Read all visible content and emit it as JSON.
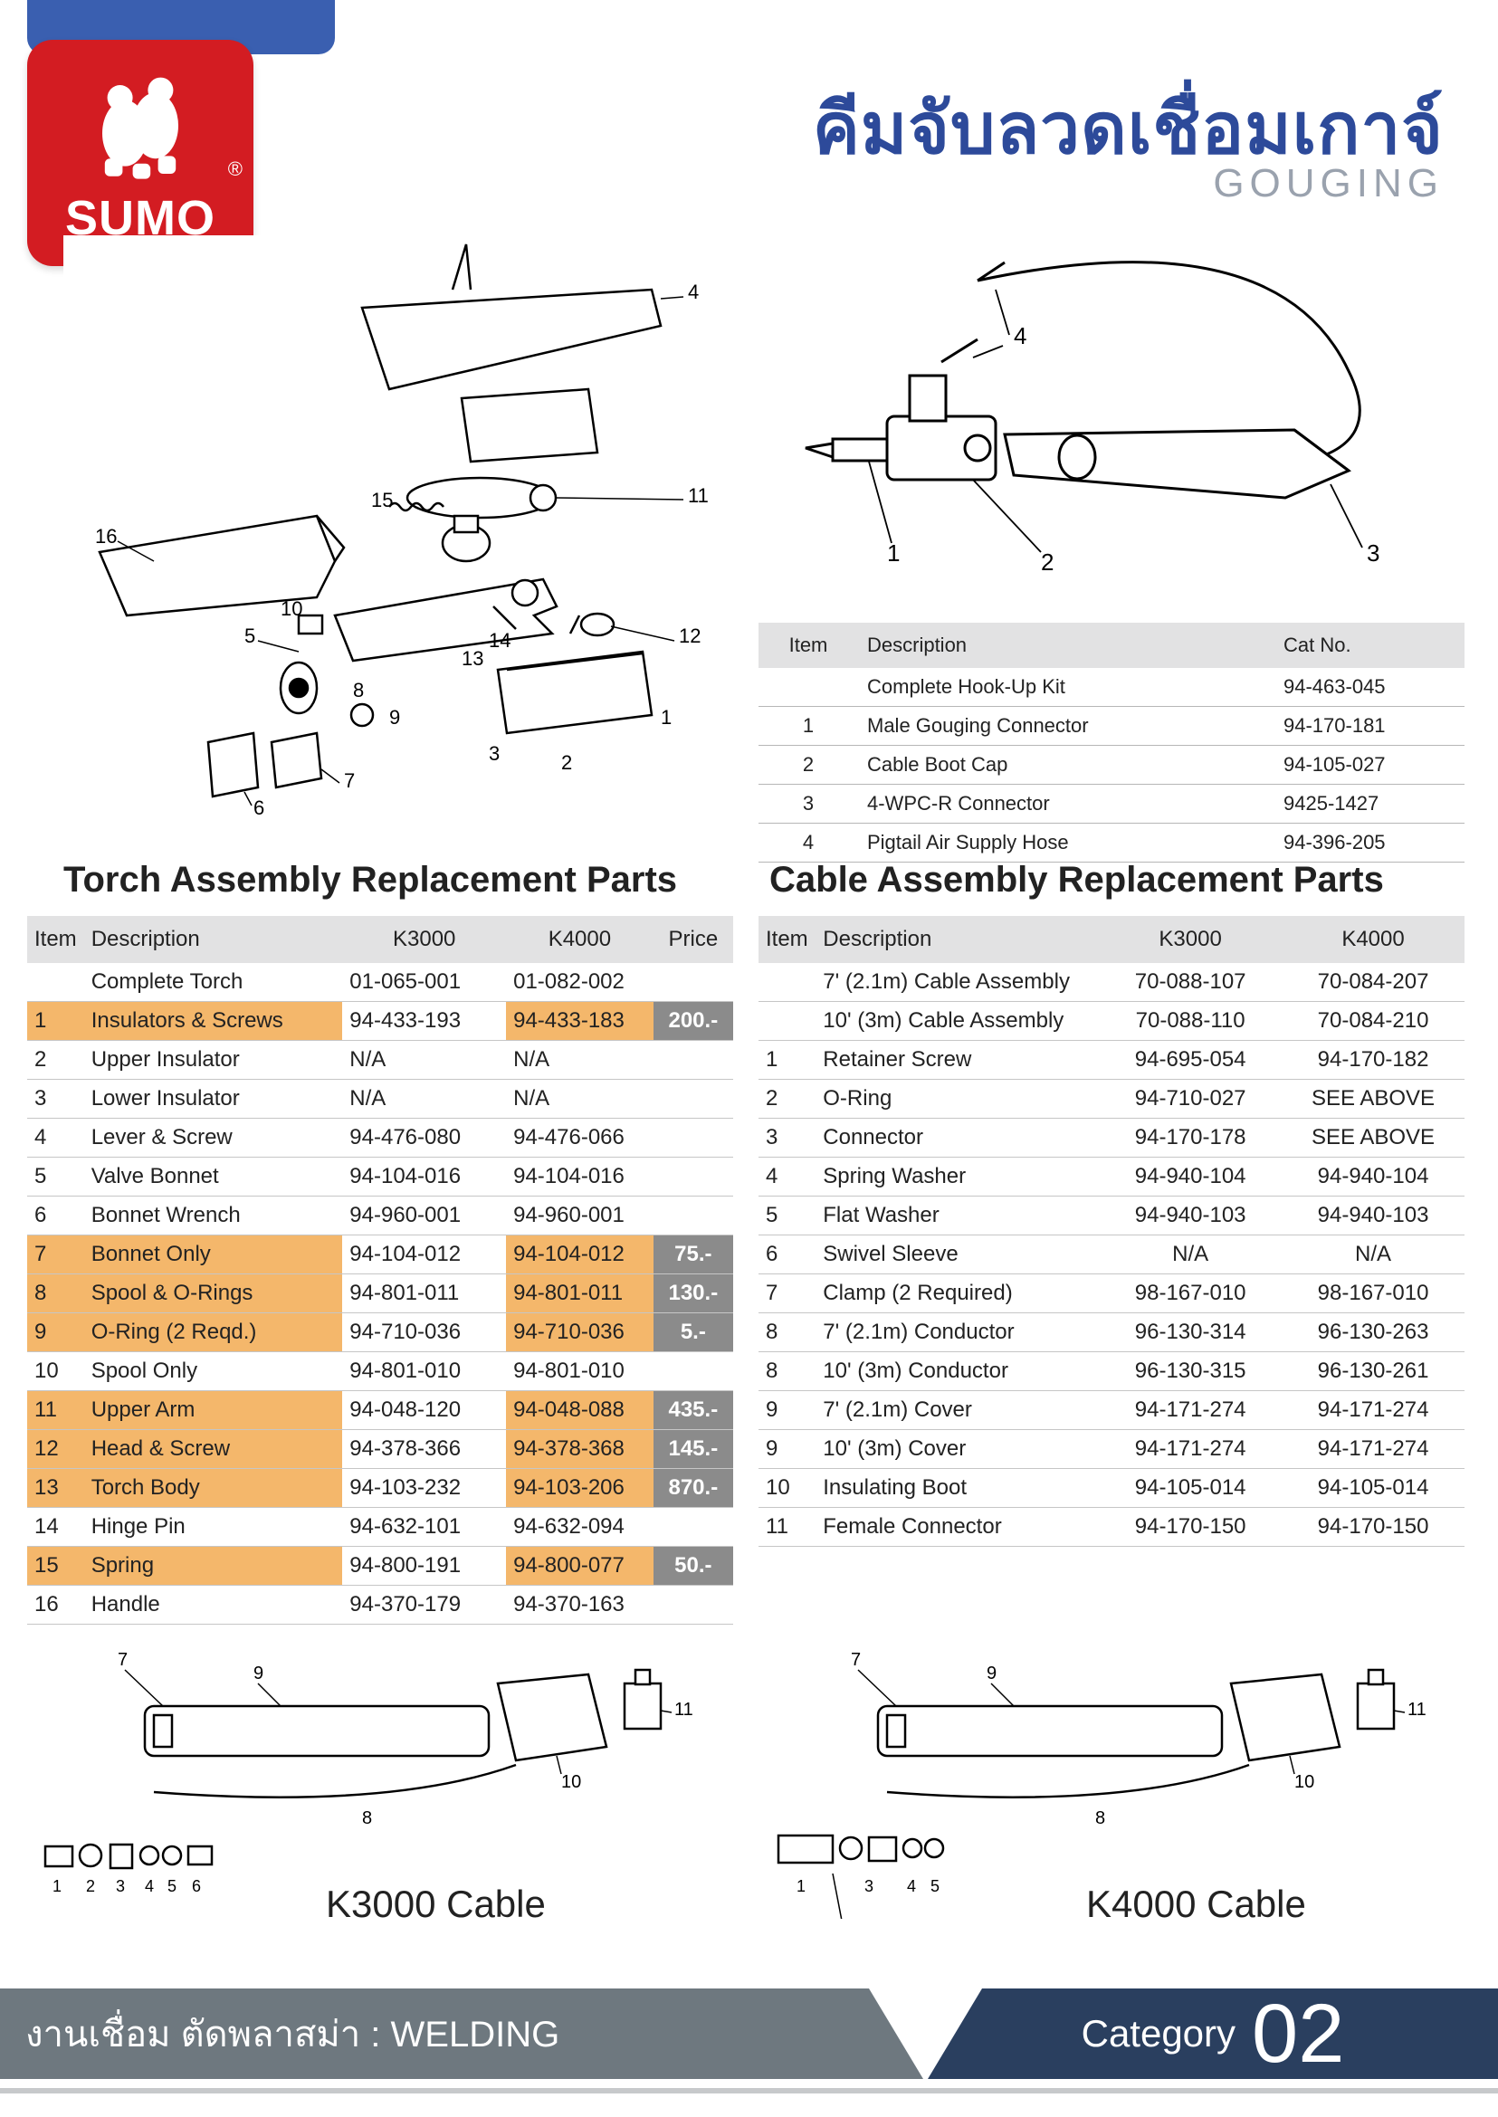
{
  "brand": {
    "name": "SUMO",
    "registered": "®"
  },
  "header": {
    "title_th": "คีมจับลวดเชื่อมเกาจ์",
    "title_en": "GOUGING"
  },
  "colors": {
    "accent_blue": "#3a5fb0",
    "navy": "#2a3f5f",
    "logo_red": "#d31c22",
    "highlight_orange": "#f4b76b",
    "price_bg": "#8b8b8b",
    "header_grey": "#e2e2e3",
    "row_border": "#c6c6c6",
    "footer_grey": "#6e787f"
  },
  "hookup": {
    "headers": {
      "item": "Item",
      "desc": "Description",
      "cat": "Cat No."
    },
    "rows": [
      {
        "item": "",
        "desc": "Complete Hook-Up Kit",
        "cat": "94-463-045"
      },
      {
        "item": "1",
        "desc": "Male Gouging Connector",
        "cat": "94-170-181"
      },
      {
        "item": "2",
        "desc": "Cable Boot Cap",
        "cat": "94-105-027"
      },
      {
        "item": "3",
        "desc": "4-WPC-R Connector",
        "cat": "9425-1427"
      },
      {
        "item": "4",
        "desc": "Pigtail Air Supply Hose",
        "cat": "94-396-205"
      }
    ]
  },
  "torch": {
    "title": "Torch Assembly Replacement Parts",
    "headers": {
      "item": "Item",
      "desc": "Description",
      "k3": "K3000",
      "k4": "K4000",
      "price": "Price"
    },
    "rows": [
      {
        "item": "",
        "desc": "Complete Torch",
        "k3": "01-065-001",
        "k4": "01-082-002",
        "price": "",
        "hl": false
      },
      {
        "item": "1",
        "desc": "Insulators & Screws",
        "k3": "94-433-193",
        "k4": "94-433-183",
        "price": "200.-",
        "hl": true
      },
      {
        "item": "2",
        "desc": "Upper Insulator",
        "k3": "N/A",
        "k4": "N/A",
        "price": "",
        "hl": false
      },
      {
        "item": "3",
        "desc": "Lower Insulator",
        "k3": "N/A",
        "k4": "N/A",
        "price": "",
        "hl": false
      },
      {
        "item": "4",
        "desc": "Lever & Screw",
        "k3": "94-476-080",
        "k4": "94-476-066",
        "price": "",
        "hl": false
      },
      {
        "item": "5",
        "desc": "Valve Bonnet",
        "k3": "94-104-016",
        "k4": "94-104-016",
        "price": "",
        "hl": false
      },
      {
        "item": "6",
        "desc": "Bonnet Wrench",
        "k3": "94-960-001",
        "k4": "94-960-001",
        "price": "",
        "hl": false
      },
      {
        "item": "7",
        "desc": "Bonnet Only",
        "k3": "94-104-012",
        "k4": "94-104-012",
        "price": "75.-",
        "hl": true
      },
      {
        "item": "8",
        "desc": "Spool & O-Rings",
        "k3": "94-801-011",
        "k4": "94-801-011",
        "price": "130.-",
        "hl": true
      },
      {
        "item": "9",
        "desc": "O-Ring (2 Reqd.)",
        "k3": "94-710-036",
        "k4": "94-710-036",
        "price": "5.-",
        "hl": true
      },
      {
        "item": "10",
        "desc": "Spool Only",
        "k3": "94-801-010",
        "k4": "94-801-010",
        "price": "",
        "hl": false
      },
      {
        "item": "11",
        "desc": "Upper Arm",
        "k3": "94-048-120",
        "k4": "94-048-088",
        "price": "435.-",
        "hl": true
      },
      {
        "item": "12",
        "desc": "Head & Screw",
        "k3": "94-378-366",
        "k4": "94-378-368",
        "price": "145.-",
        "hl": true
      },
      {
        "item": "13",
        "desc": "Torch Body",
        "k3": "94-103-232",
        "k4": "94-103-206",
        "price": "870.-",
        "hl": true
      },
      {
        "item": "14",
        "desc": "Hinge Pin",
        "k3": "94-632-101",
        "k4": "94-632-094",
        "price": "",
        "hl": false
      },
      {
        "item": "15",
        "desc": "Spring",
        "k3": "94-800-191",
        "k4": "94-800-077",
        "price": "50.-",
        "hl": true
      },
      {
        "item": "16",
        "desc": "Handle",
        "k3": "94-370-179",
        "k4": "94-370-163",
        "price": "",
        "hl": false
      }
    ]
  },
  "cable": {
    "title": "Cable Assembly Replacement Parts",
    "headers": {
      "item": "Item",
      "desc": "Description",
      "k3": "K3000",
      "k4": "K4000"
    },
    "rows": [
      {
        "item": "",
        "desc": "7' (2.1m) Cable Assembly",
        "k3": "70-088-107",
        "k4": "70-084-207"
      },
      {
        "item": "",
        "desc": "10' (3m) Cable Assembly",
        "k3": "70-088-110",
        "k4": "70-084-210"
      },
      {
        "item": "1",
        "desc": "Retainer Screw",
        "k3": "94-695-054",
        "k4": "94-170-182"
      },
      {
        "item": "2",
        "desc": "O-Ring",
        "k3": "94-710-027",
        "k4": "SEE ABOVE"
      },
      {
        "item": "3",
        "desc": "Connector",
        "k3": "94-170-178",
        "k4": "SEE ABOVE"
      },
      {
        "item": "4",
        "desc": "Spring Washer",
        "k3": "94-940-104",
        "k4": "94-940-104"
      },
      {
        "item": "5",
        "desc": "Flat Washer",
        "k3": "94-940-103",
        "k4": "94-940-103"
      },
      {
        "item": "6",
        "desc": "Swivel Sleeve",
        "k3": "N/A",
        "k4": "N/A"
      },
      {
        "item": "7",
        "desc": "Clamp (2 Required)",
        "k3": "98-167-010",
        "k4": "98-167-010"
      },
      {
        "item": "8",
        "desc": "7' (2.1m) Conductor",
        "k3": "96-130-314",
        "k4": "96-130-263"
      },
      {
        "item": "8",
        "desc": "10' (3m) Conductor",
        "k3": "96-130-315",
        "k4": "96-130-261"
      },
      {
        "item": "9",
        "desc": "7' (2.1m) Cover",
        "k3": "94-171-274",
        "k4": "94-171-274"
      },
      {
        "item": "9",
        "desc": "10' (3m) Cover",
        "k3": "94-171-274",
        "k4": "94-171-274"
      },
      {
        "item": "10",
        "desc": "Insulating Boot",
        "k3": "94-105-014",
        "k4": "94-105-014"
      },
      {
        "item": "11",
        "desc": "Female Connector",
        "k3": "94-170-150",
        "k4": "94-170-150"
      }
    ]
  },
  "bottom_diagrams": {
    "left_label": "K3000 Cable",
    "right_label": "K4000 Cable"
  },
  "footer": {
    "left_text": "งานเชื่อม ตัดพลาสม่า : WELDING",
    "cat_label": "Category",
    "cat_num": "02"
  }
}
